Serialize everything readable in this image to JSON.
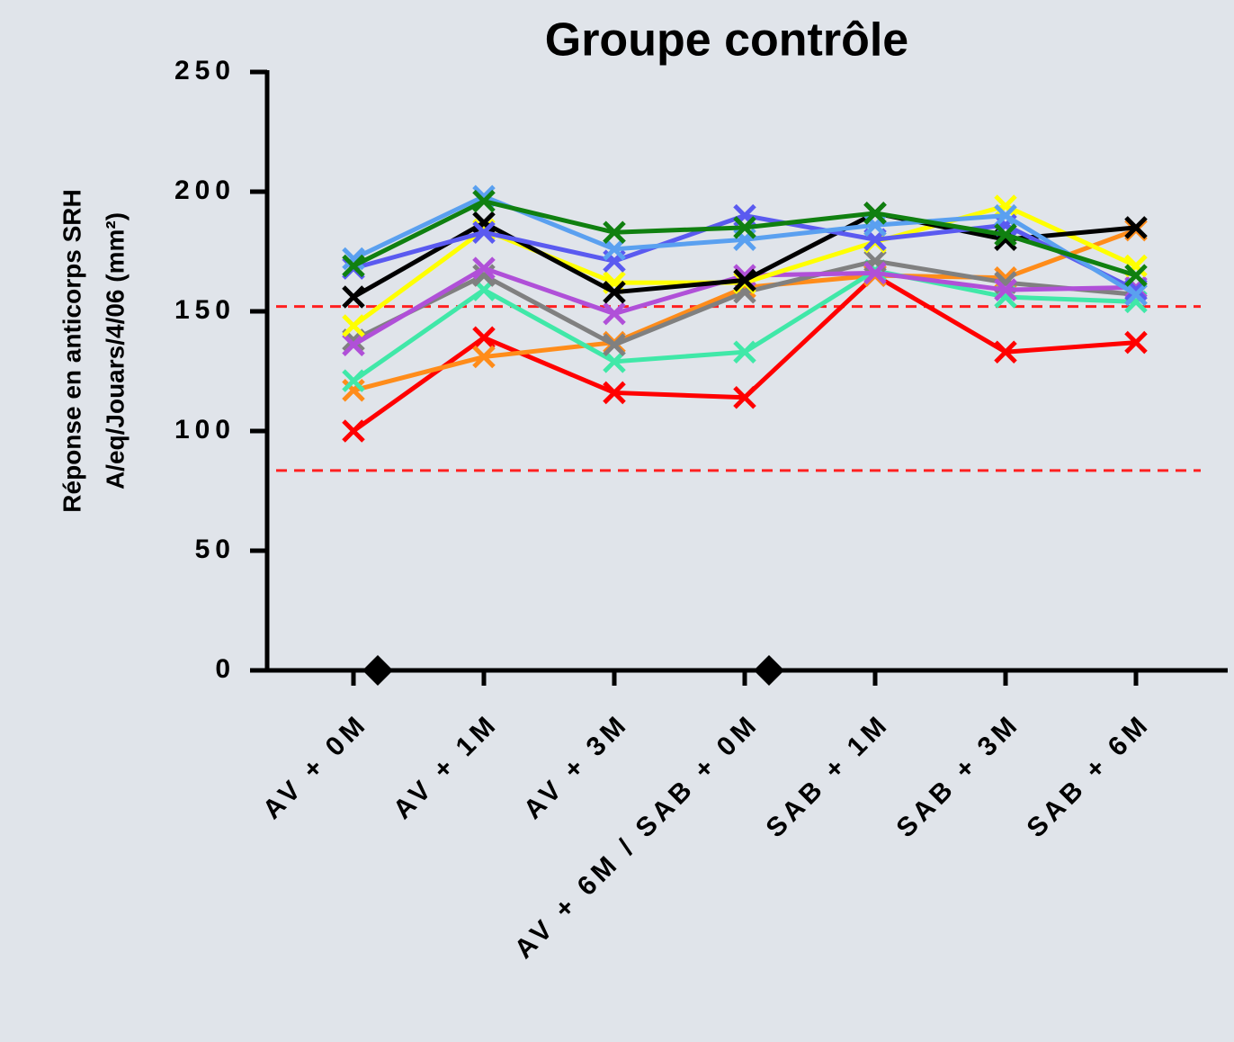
{
  "chart_data": {
    "type": "line",
    "title": "Groupe contrôle",
    "y_label": [
      "Réponse en anticorps SRH",
      "A/eq/Jouars/4/06 (mm²)"
    ],
    "categories": [
      "AV + 0M",
      "AV + 1M",
      "AV + 3M",
      "AV + 6M / SAB + 0M",
      "SAB + 1M",
      "SAB + 3M",
      "SAB + 6M"
    ],
    "ylim": [
      0,
      250
    ],
    "yticks": [
      0,
      50,
      100,
      150,
      200,
      250
    ],
    "reference_lines": {
      "values": [
        152,
        83.5
      ],
      "color": "#ff2020"
    },
    "diamonds": {
      "categories": [
        "AV + 0M",
        "AV + 6M / SAB + 0M"
      ],
      "values": [
        0,
        0
      ],
      "color": "#000000"
    },
    "series": [
      {
        "color": "#ff0000",
        "values": [
          100,
          139,
          116,
          114,
          165,
          133,
          137
        ]
      },
      {
        "color": "#ff8c1a",
        "values": [
          117,
          131,
          137,
          160,
          165,
          164,
          184
        ]
      },
      {
        "color": "#40e8a8",
        "values": [
          121,
          159,
          129,
          133,
          167,
          156,
          154
        ]
      },
      {
        "color": "#808080",
        "values": [
          138,
          165,
          136,
          158,
          171,
          162,
          157
        ]
      },
      {
        "color": "#b050d8",
        "values": [
          136,
          168,
          149,
          165,
          166,
          159,
          160
        ]
      },
      {
        "color": "#ffff00",
        "values": [
          144,
          184,
          162,
          162,
          179,
          194,
          169
        ]
      },
      {
        "color": "#000000",
        "values": [
          156,
          187,
          158,
          163,
          191,
          180,
          185
        ]
      },
      {
        "color": "#5a5af0",
        "values": [
          168,
          183,
          171,
          190,
          180,
          186,
          159
        ]
      },
      {
        "color": "#5aa0f0",
        "values": [
          172,
          198,
          176,
          180,
          186,
          190,
          157
        ]
      },
      {
        "color": "#108010",
        "values": [
          169,
          196,
          183,
          185,
          191,
          182,
          165
        ]
      }
    ]
  }
}
